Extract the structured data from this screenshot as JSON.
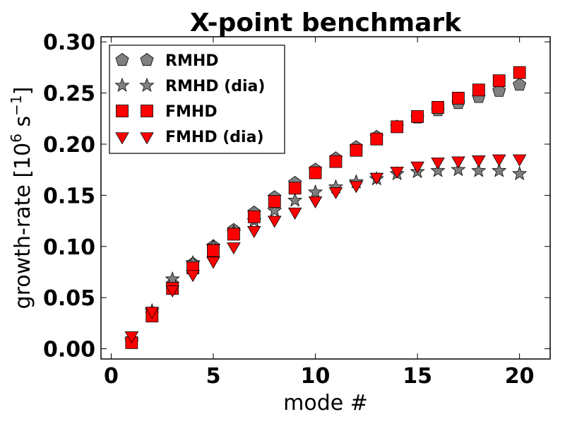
{
  "chart_data": {
    "type": "scatter",
    "title": "X-point benchmark",
    "xlabel": "mode #",
    "ylabel": "growth-rate [10",
    "ylabel_exp": "6",
    "ylabel_unit": " s",
    "ylabel_unit_exp": "−1",
    "ylabel_close": "]",
    "xlim": [
      -0.5,
      21.5
    ],
    "ylim": [
      -0.01,
      0.305
    ],
    "xticks": [
      0,
      5,
      10,
      15,
      20
    ],
    "xtick_labels": [
      "0",
      "5",
      "10",
      "15",
      "20"
    ],
    "yticks": [
      0.0,
      0.05,
      0.1,
      0.15,
      0.2,
      0.25,
      0.3
    ],
    "ytick_labels": [
      "0.00",
      "0.05",
      "0.10",
      "0.15",
      "0.20",
      "0.25",
      "0.30"
    ],
    "legend_position": "top-left",
    "x": [
      1,
      2,
      3,
      4,
      5,
      6,
      7,
      8,
      9,
      10,
      11,
      12,
      13,
      14,
      15,
      16,
      17,
      18,
      19,
      20
    ],
    "series": [
      {
        "name": "RMHD",
        "marker": "pentagon",
        "color": "#808080",
        "values": [
          0.006,
          0.034,
          0.063,
          0.083,
          0.1,
          0.116,
          0.133,
          0.148,
          0.162,
          0.175,
          0.186,
          0.197,
          0.207,
          0.217,
          0.226,
          0.233,
          0.24,
          0.246,
          0.252,
          0.258
        ]
      },
      {
        "name": "RMHD (dia)",
        "marker": "star",
        "color": "#808080",
        "values": [
          0.008,
          0.037,
          0.068,
          0.084,
          0.1,
          0.114,
          0.125,
          0.135,
          0.145,
          0.153,
          0.158,
          0.163,
          0.166,
          0.171,
          0.173,
          0.174,
          0.175,
          0.174,
          0.174,
          0.171
        ]
      },
      {
        "name": "FMHD",
        "marker": "square",
        "color": "#ff0000",
        "values": [
          0.006,
          0.032,
          0.059,
          0.079,
          0.096,
          0.112,
          0.129,
          0.144,
          0.157,
          0.172,
          0.183,
          0.194,
          0.205,
          0.217,
          0.227,
          0.236,
          0.245,
          0.253,
          0.262,
          0.27
        ]
      },
      {
        "name": "FMHD (dia)",
        "marker": "triangle-down",
        "color": "#ff0000",
        "values": [
          0.013,
          0.037,
          0.058,
          0.073,
          0.086,
          0.1,
          0.116,
          0.126,
          0.134,
          0.145,
          0.154,
          0.16,
          0.168,
          0.174,
          0.179,
          0.183,
          0.184,
          0.185,
          0.186,
          0.186
        ]
      }
    ]
  }
}
